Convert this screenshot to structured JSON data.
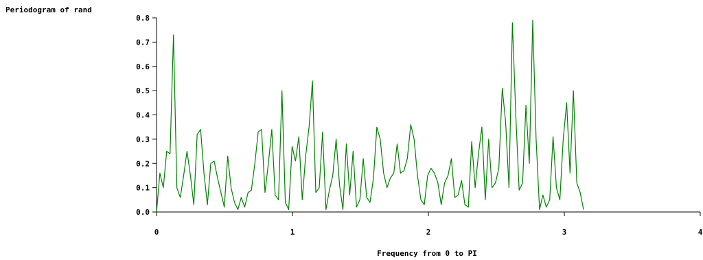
{
  "chart_data": {
    "type": "line",
    "title": "",
    "ylabel": "Periodogram of rand",
    "xlabel": "Frequency from 0 to PI",
    "xlim": [
      0,
      4
    ],
    "ylim": [
      0,
      0.8
    ],
    "x_ticks": [
      "0",
      "1",
      "2",
      "3",
      "4"
    ],
    "y_ticks": [
      "0.0",
      "0.1",
      "0.2",
      "0.3",
      "0.4",
      "0.5",
      "0.6",
      "0.7",
      "0.8"
    ],
    "grid": false,
    "line_color": "#008000",
    "series": [
      {
        "values": [
          0.0,
          0.16,
          0.1,
          0.25,
          0.24,
          0.73,
          0.1,
          0.06,
          0.15,
          0.25,
          0.15,
          0.03,
          0.32,
          0.34,
          0.16,
          0.03,
          0.2,
          0.21,
          0.14,
          0.08,
          0.02,
          0.23,
          0.1,
          0.04,
          0.01,
          0.06,
          0.02,
          0.08,
          0.09,
          0.2,
          0.33,
          0.34,
          0.08,
          0.2,
          0.34,
          0.07,
          0.05,
          0.5,
          0.04,
          0.01,
          0.27,
          0.21,
          0.31,
          0.05,
          0.23,
          0.35,
          0.54,
          0.08,
          0.1,
          0.33,
          0.01,
          0.09,
          0.15,
          0.3,
          0.11,
          0.01,
          0.28,
          0.07,
          0.25,
          0.02,
          0.05,
          0.22,
          0.06,
          0.04,
          0.14,
          0.35,
          0.3,
          0.16,
          0.1,
          0.14,
          0.16,
          0.28,
          0.16,
          0.17,
          0.22,
          0.36,
          0.3,
          0.15,
          0.05,
          0.03,
          0.15,
          0.18,
          0.16,
          0.12,
          0.03,
          0.12,
          0.15,
          0.22,
          0.06,
          0.07,
          0.13,
          0.03,
          0.02,
          0.29,
          0.1,
          0.24,
          0.35,
          0.05,
          0.3,
          0.1,
          0.12,
          0.18,
          0.51,
          0.37,
          0.1,
          0.78,
          0.4,
          0.09,
          0.12,
          0.44,
          0.2,
          0.79,
          0.3,
          0.01,
          0.07,
          0.02,
          0.05,
          0.31,
          0.1,
          0.05,
          0.3,
          0.45,
          0.16,
          0.5,
          0.12,
          0.08,
          0.01
        ]
      }
    ]
  }
}
